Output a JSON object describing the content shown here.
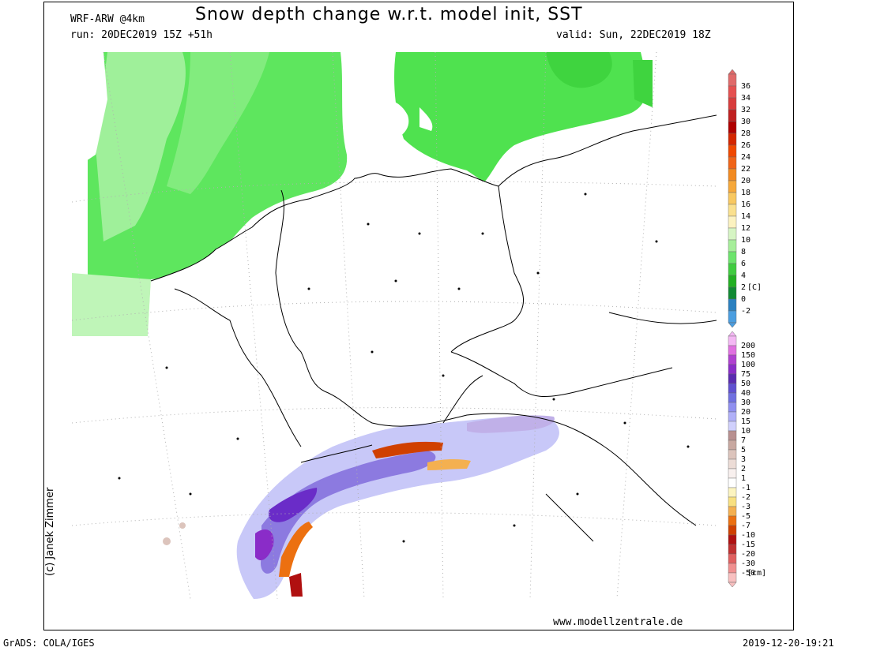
{
  "header": {
    "title": "Snow depth change w.r.t. model init, SST",
    "model": "WRF-ARW @4km",
    "run": "run: 20DEC2019 15Z +51h",
    "valid": "valid: Sun, 22DEC2019 18Z"
  },
  "footer": {
    "credit": "(c) Janek Zimmer",
    "website": "www.modellzentrale.de",
    "software": "GrADS: COLA/IGES",
    "timestamp": "2019-12-20-19:21"
  },
  "colorbars": {
    "sst": {
      "unit": "[C]",
      "labels": [
        "36",
        "34",
        "32",
        "30",
        "28",
        "26",
        "24",
        "22",
        "20",
        "18",
        "16",
        "14",
        "12",
        "10",
        "8",
        "6",
        "4",
        "2",
        "0",
        "-2"
      ],
      "colors": [
        "#e06a6a",
        "#e55050",
        "#d83c3c",
        "#c02020",
        "#b00000",
        "#d42600",
        "#f04800",
        "#f06418",
        "#f28a20",
        "#f6a83a",
        "#f8c860",
        "#fae08e",
        "#fcf2c0",
        "#d6f5c4",
        "#a6ee9a",
        "#6ce46c",
        "#40cc40",
        "#22b022",
        "#118a34",
        "#2a80c0",
        "#4b9ee0"
      ]
    },
    "snow": {
      "unit": "[cm]",
      "labels": [
        "200",
        "150",
        "100",
        "75",
        "50",
        "40",
        "30",
        "20",
        "15",
        "10",
        "7",
        "5",
        "3",
        "2",
        "1",
        "-1",
        "-2",
        "-3",
        "-5",
        "-7",
        "-10",
        "-15",
        "-20",
        "-30",
        "-50"
      ],
      "colors": [
        "#f4b8f4",
        "#e070e0",
        "#b040d0",
        "#8a2cc8",
        "#5a2ab0",
        "#6050d0",
        "#7070e0",
        "#9090f0",
        "#b0b0f8",
        "#d0d0fc",
        "#b89090",
        "#c8a8a0",
        "#dcc4bc",
        "#ecdcd6",
        "#f8f0ee",
        "#ffffff",
        "#fcf4c0",
        "#f8e080",
        "#f4b050",
        "#ec7010",
        "#d04000",
        "#b01010",
        "#c03030",
        "#e06060",
        "#f09090",
        "#f8c0c0"
      ]
    }
  }
}
